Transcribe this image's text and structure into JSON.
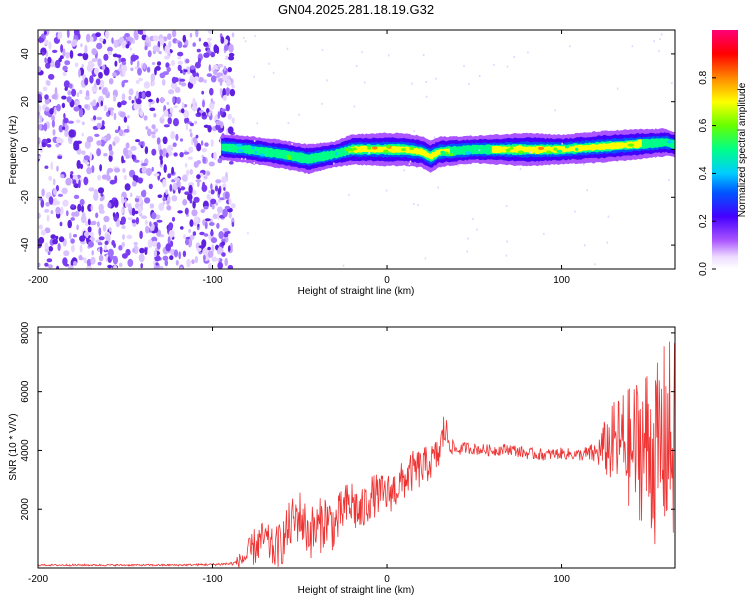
{
  "title": "GN04.2025.281.18.19.G32",
  "chart_data": [
    {
      "type": "heatmap",
      "xlabel": "Height of straight line (km)",
      "ylabel": "Frequency (Hz)",
      "xlim": [
        -200,
        165
      ],
      "ylim": [
        -50,
        50
      ],
      "x_ticks": [
        -200,
        -100,
        0,
        100
      ],
      "x_tick_labels": [
        "-200",
        "-100",
        "0",
        "100"
      ],
      "y_ticks": [
        -40,
        -20,
        0,
        20,
        40
      ],
      "y_tick_labels": [
        "-40",
        "-20",
        "0",
        "20",
        "40"
      ],
      "noise_region_x": [
        -200,
        -88
      ],
      "ridge": {
        "x": [
          -95,
          -80,
          -60,
          -45,
          -30,
          -20,
          0,
          10,
          20,
          25,
          30,
          50,
          70,
          80,
          100,
          120,
          140,
          160,
          165
        ],
        "center_freq": [
          1,
          0,
          -2,
          -4,
          -2,
          0,
          0,
          0,
          -1,
          -3,
          -1,
          0,
          0,
          0,
          0,
          1,
          2,
          3,
          2
        ],
        "peak_amplitude": [
          0.5,
          0.6,
          0.65,
          0.7,
          0.55,
          0.75,
          0.9,
          0.85,
          0.8,
          0.85,
          0.75,
          0.6,
          0.8,
          0.95,
          0.7,
          0.8,
          0.75,
          0.6,
          0.5
        ]
      },
      "colorbar": {
        "label": "Normalized spectral amplitude",
        "range": [
          0,
          1
        ],
        "ticks": [
          0.0,
          0.2,
          0.4,
          0.6,
          0.8
        ],
        "tick_labels": [
          "0.0",
          "0.2",
          "0.4",
          "0.6",
          "0.8"
        ]
      }
    },
    {
      "type": "line",
      "xlabel": "Height of straight line (km)",
      "ylabel": "SNR (10 * V/V)",
      "xlim": [
        -200,
        165
      ],
      "ylim": [
        0,
        8200
      ],
      "x_ticks": [
        -200,
        -100,
        0,
        100
      ],
      "x_tick_labels": [
        "-200",
        "-100",
        "0",
        "100"
      ],
      "y_ticks": [
        2000,
        4000,
        6000,
        8000
      ],
      "y_tick_labels": [
        "2000",
        "4000",
        "6000",
        "8000"
      ],
      "color": "#ee3333",
      "series": [
        {
          "name": "SNR",
          "x": [
            -200,
            -180,
            -160,
            -140,
            -120,
            -100,
            -88,
            -80,
            -75,
            -70,
            -65,
            -60,
            -55,
            -50,
            -45,
            -40,
            -35,
            -30,
            -25,
            -20,
            -15,
            -10,
            -5,
            0,
            5,
            10,
            15,
            20,
            25,
            30,
            33,
            36,
            40,
            45,
            50,
            60,
            70,
            80,
            90,
            100,
            110,
            120,
            125,
            130,
            135,
            140,
            145,
            150,
            155,
            160,
            163
          ],
          "y": [
            100,
            100,
            100,
            100,
            100,
            120,
            150,
            400,
            800,
            1000,
            600,
            900,
            1500,
            1800,
            1200,
            1300,
            1700,
            1400,
            2000,
            2200,
            1800,
            2400,
            2500,
            2500,
            2700,
            3000,
            3300,
            3400,
            3600,
            3900,
            4800,
            4200,
            4000,
            4100,
            4050,
            4000,
            4050,
            3900,
            3850,
            3900,
            3850,
            3900,
            4100,
            4200,
            4300,
            4000,
            4200,
            4100,
            3800,
            4500,
            4200
          ],
          "spread": [
            30,
            30,
            30,
            30,
            30,
            40,
            60,
            500,
            700,
            600,
            700,
            800,
            900,
            900,
            900,
            1000,
            900,
            900,
            800,
            900,
            800,
            800,
            700,
            700,
            700,
            700,
            700,
            700,
            600,
            600,
            700,
            300,
            200,
            200,
            200,
            200,
            200,
            200,
            200,
            200,
            200,
            400,
            1000,
            1500,
            1800,
            2200,
            2600,
            3000,
            3200,
            3400,
            3600
          ]
        }
      ]
    }
  ]
}
